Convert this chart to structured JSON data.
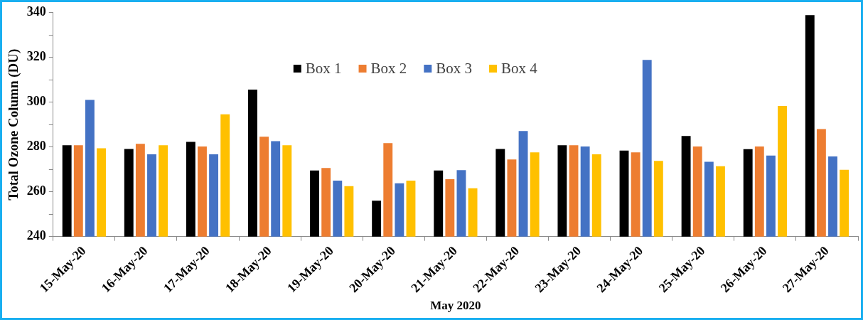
{
  "chart_data": {
    "type": "bar",
    "xlabel": "May 2020",
    "ylabel": "Total Ozone Column (DU)",
    "categories": [
      "15-May-20",
      "16-May-20",
      "17-May-20",
      "18-May-20",
      "19-May-20",
      "20-May-20",
      "21-May-20",
      "22-May-20",
      "23-May-20",
      "24-May-20",
      "25-May-20",
      "26-May-20",
      "27-May-20"
    ],
    "series": [
      {
        "name": "Box 1",
        "color": "#000000",
        "values": [
          280.8,
          279.1,
          282.3,
          305.6,
          269.5,
          256,
          269.5,
          279.1,
          280.8,
          278.4,
          284.9,
          279,
          338.9
        ]
      },
      {
        "name": "Box 2",
        "color": "#ed7d31",
        "values": [
          280.8,
          281.4,
          280.2,
          284.6,
          270.6,
          281.7,
          265.6,
          274.4,
          280.8,
          277.6,
          280.2,
          280.2,
          288
        ]
      },
      {
        "name": "Box 3",
        "color": "#4472c4",
        "values": [
          301,
          276.7,
          276.7,
          282.6,
          265,
          263.8,
          269.7,
          287.1,
          280.2,
          318.9,
          273.4,
          276.2,
          275.8
        ]
      },
      {
        "name": "Box 4",
        "color": "#ffc000",
        "values": [
          279.4,
          280.8,
          294.6,
          280.8,
          262.5,
          265,
          261.6,
          277.6,
          276.7,
          273.8,
          271.4,
          298.3,
          269.8
        ]
      }
    ],
    "ylim": [
      240,
      340
    ],
    "yticks": [
      240,
      {
        "value": 250,
        "label": null
      },
      260,
      {
        "value": 270,
        "label": null
      },
      280,
      {
        "value": 290,
        "label": null
      },
      300,
      {
        "value": 310,
        "label": null
      },
      320,
      {
        "value": 330,
        "label": null
      },
      340
    ],
    "grid": false,
    "legend": "top"
  }
}
